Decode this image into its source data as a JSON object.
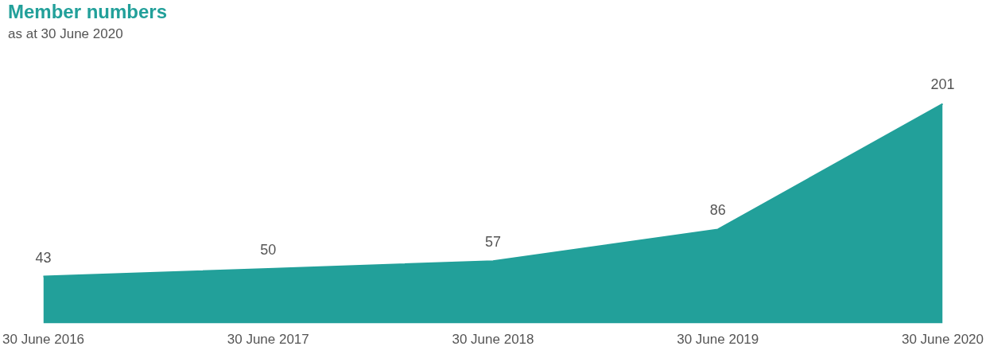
{
  "chart_data": {
    "type": "area",
    "title": "Member numbers",
    "subtitle": "as at 30 June 2020",
    "categories": [
      "30 June 2016",
      "30 June 2017",
      "30 June 2018",
      "30 June 2019",
      "30 June 2020"
    ],
    "values": [
      43,
      50,
      57,
      86,
      201
    ],
    "color": "#22a09a",
    "data_labels": true,
    "grid": false,
    "legend": false
  }
}
